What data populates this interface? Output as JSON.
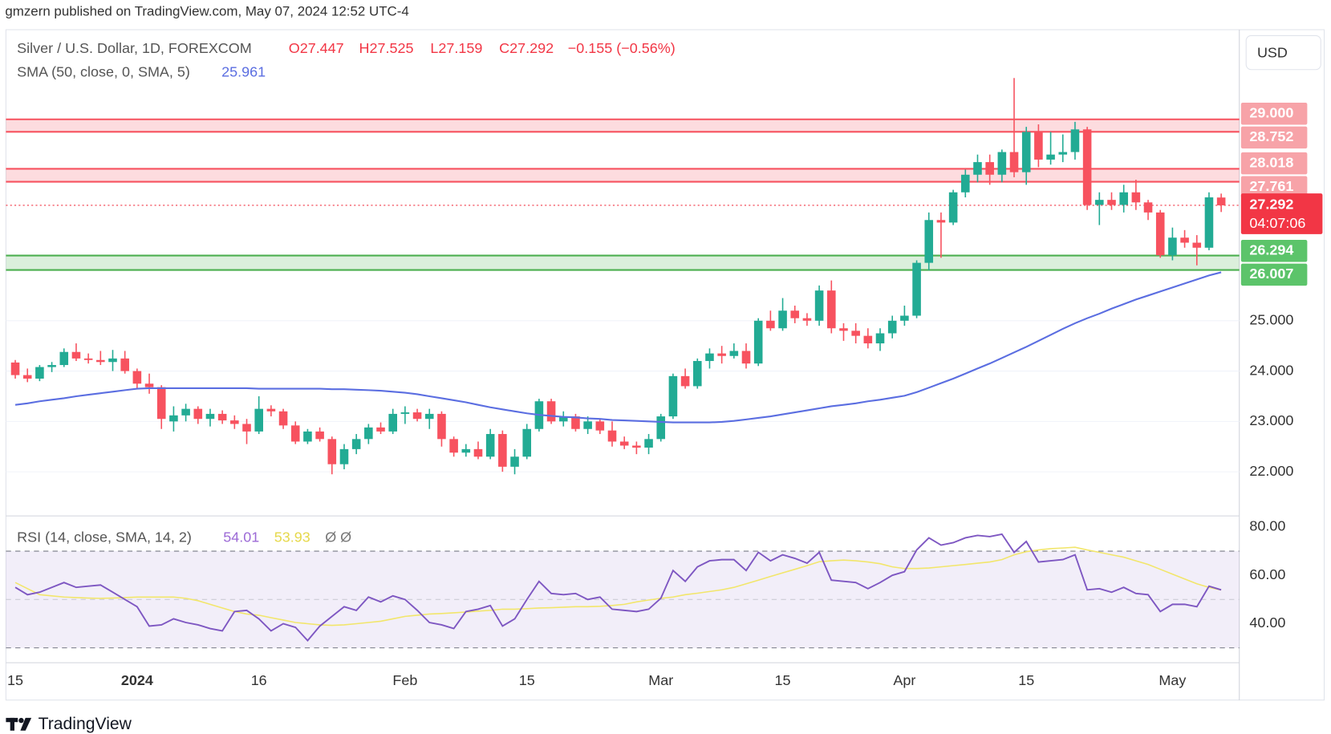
{
  "chart_data": {
    "type": "candlestick",
    "header": {
      "publisher": "gmzern published on TradingView.com, May 07, 2024 12:52 UTC-4",
      "symbol": "Silver / U.S. Dollar, 1D, FOREXCOM",
      "ohlc": [
        "O27.447",
        "H27.525",
        "L27.159",
        "C27.292"
      ],
      "change": "−0.155 (−0.56%)"
    },
    "currency": "USD",
    "countdown": "04:07:06",
    "brand": "TradingView",
    "up_color": "#22ab94",
    "down_color": "#f7525f",
    "categories": [
      "15",
      null,
      null,
      null,
      null,
      null,
      null,
      null,
      null,
      null,
      "2024",
      null,
      null,
      null,
      null,
      null,
      null,
      null,
      null,
      null,
      "16",
      null,
      null,
      null,
      null,
      null,
      null,
      null,
      null,
      null,
      null,
      null,
      "Feb",
      null,
      null,
      null,
      null,
      null,
      null,
      null,
      null,
      null,
      "15",
      null,
      null,
      null,
      null,
      null,
      null,
      null,
      null,
      null,
      null,
      "Mar",
      null,
      null,
      null,
      null,
      null,
      null,
      null,
      null,
      null,
      "15",
      null,
      null,
      null,
      null,
      null,
      null,
      null,
      null,
      null,
      "Apr",
      null,
      null,
      null,
      null,
      null,
      null,
      null,
      null,
      null,
      "15",
      null,
      null,
      null,
      null,
      null,
      null,
      null,
      null,
      null,
      null,
      null,
      "May",
      null,
      null,
      null,
      null
    ],
    "open": [
      24.17,
      23.92,
      23.85,
      24.08,
      24.12,
      24.38,
      24.25,
      24.22,
      24.18,
      24.25,
      24.0,
      23.75,
      23.68,
      23.0,
      23.12,
      23.25,
      23.05,
      23.15,
      23.02,
      22.95,
      22.8,
      23.25,
      23.2,
      22.92,
      22.6,
      22.8,
      22.65,
      22.15,
      22.45,
      22.65,
      22.88,
      22.8,
      23.15,
      23.18,
      23.05,
      23.15,
      22.65,
      22.38,
      22.45,
      22.3,
      22.75,
      22.1,
      22.3,
      22.85,
      23.4,
      23.0,
      23.1,
      22.85,
      23.0,
      22.82,
      22.6,
      22.52,
      22.48,
      22.65,
      23.1,
      23.9,
      23.7,
      24.2,
      24.35,
      24.3,
      24.4,
      24.15,
      25.0,
      24.85,
      25.2,
      25.05,
      25.0,
      25.6,
      24.85,
      24.8,
      24.7,
      24.55,
      24.75,
      25.0,
      25.1,
      26.15,
      27.0,
      26.95,
      27.55,
      27.9,
      28.15,
      27.9,
      28.35,
      27.95,
      28.75,
      28.2,
      28.3,
      28.35,
      28.8,
      27.3,
      27.4,
      27.3,
      27.55,
      27.35,
      27.15,
      26.3,
      26.65,
      26.55,
      26.45,
      27.447
    ],
    "high": [
      24.22,
      24.05,
      24.12,
      24.18,
      24.45,
      24.55,
      24.35,
      24.4,
      24.42,
      24.4,
      24.05,
      23.95,
      23.72,
      23.3,
      23.35,
      23.3,
      23.25,
      23.22,
      23.12,
      23.05,
      23.5,
      23.32,
      23.25,
      23.0,
      22.85,
      22.88,
      22.7,
      22.55,
      22.75,
      22.95,
      22.98,
      23.25,
      23.3,
      23.25,
      23.25,
      23.2,
      22.7,
      22.55,
      22.6,
      22.85,
      22.82,
      22.45,
      22.95,
      23.45,
      23.45,
      23.2,
      23.15,
      23.1,
      23.05,
      23.0,
      22.7,
      22.6,
      22.75,
      23.15,
      23.95,
      24.05,
      24.25,
      24.45,
      24.5,
      24.55,
      24.55,
      25.05,
      25.2,
      25.45,
      25.3,
      25.15,
      25.7,
      25.8,
      24.95,
      24.95,
      24.85,
      24.85,
      25.1,
      25.3,
      26.2,
      27.15,
      27.15,
      27.6,
      28.0,
      28.3,
      28.3,
      28.4,
      29.82,
      28.85,
      28.9,
      28.75,
      28.7,
      28.95,
      28.85,
      27.55,
      27.55,
      27.7,
      27.8,
      27.4,
      27.2,
      26.85,
      26.8,
      26.7,
      27.55,
      27.525
    ],
    "low": [
      23.85,
      23.78,
      23.8,
      23.98,
      24.08,
      24.2,
      24.15,
      24.12,
      24.0,
      23.95,
      23.65,
      23.55,
      22.85,
      22.8,
      23.0,
      22.95,
      22.9,
      22.95,
      22.85,
      22.55,
      22.75,
      23.1,
      22.85,
      22.55,
      22.55,
      22.6,
      21.95,
      22.05,
      22.35,
      22.55,
      22.75,
      22.75,
      22.95,
      23.0,
      22.85,
      22.5,
      22.3,
      22.3,
      22.25,
      22.25,
      22.0,
      21.95,
      22.25,
      22.8,
      22.95,
      22.9,
      22.8,
      22.75,
      22.75,
      22.5,
      22.45,
      22.35,
      22.35,
      22.6,
      23.05,
      23.65,
      23.65,
      24.05,
      24.15,
      24.25,
      24.05,
      24.1,
      24.8,
      24.8,
      24.95,
      24.9,
      24.9,
      24.75,
      24.6,
      24.55,
      24.45,
      24.4,
      24.65,
      24.9,
      25.05,
      26.0,
      26.25,
      26.9,
      27.45,
      27.75,
      27.7,
      27.75,
      27.85,
      27.7,
      28.05,
      28.1,
      28.15,
      28.2,
      27.2,
      26.9,
      27.2,
      27.15,
      27.2,
      27.0,
      26.25,
      26.2,
      26.45,
      26.1,
      26.4,
      27.159
    ],
    "close": [
      23.92,
      23.85,
      24.08,
      24.12,
      24.38,
      24.25,
      24.22,
      24.18,
      24.25,
      24.0,
      23.75,
      23.68,
      23.05,
      23.12,
      23.25,
      23.05,
      23.15,
      23.02,
      22.95,
      22.8,
      23.25,
      23.2,
      22.92,
      22.6,
      22.8,
      22.65,
      22.15,
      22.45,
      22.65,
      22.88,
      22.8,
      23.15,
      23.18,
      23.05,
      23.15,
      22.65,
      22.38,
      22.45,
      22.3,
      22.75,
      22.1,
      22.3,
      22.85,
      23.4,
      23.0,
      23.1,
      22.85,
      23.0,
      22.82,
      22.6,
      22.52,
      22.48,
      22.65,
      23.1,
      23.9,
      23.7,
      24.2,
      24.35,
      24.3,
      24.4,
      24.15,
      25.0,
      24.85,
      25.2,
      25.05,
      25.0,
      25.6,
      24.85,
      24.8,
      24.7,
      24.55,
      24.75,
      25.0,
      25.1,
      26.15,
      27.0,
      26.95,
      27.55,
      27.9,
      28.15,
      27.9,
      28.35,
      27.95,
      28.75,
      28.2,
      28.3,
      28.35,
      28.8,
      27.3,
      27.4,
      27.3,
      27.55,
      27.35,
      27.15,
      26.3,
      26.65,
      26.55,
      26.45,
      27.45,
      27.292
    ],
    "ylim": [
      21.14,
      30.78
    ],
    "yticks": [
      {
        "value": 22,
        "label": "22.000"
      },
      {
        "value": 23,
        "label": "23.000"
      },
      {
        "value": 24,
        "label": "24.000"
      },
      {
        "value": 25,
        "label": "25.000"
      }
    ],
    "grid": true,
    "zones": [
      {
        "color": "#f7525f",
        "label_color": "#f7a3a8",
        "top": {
          "value": 29,
          "label": "29.000"
        },
        "bottom": {
          "value": 28.752,
          "label": "28.752"
        }
      },
      {
        "color": "#f7525f",
        "label_color": "#f7a3a8",
        "top": {
          "value": 28.018,
          "label": "28.018"
        },
        "bottom": {
          "value": 27.761,
          "label": "27.761"
        }
      },
      {
        "color": "#4caf50",
        "label_color": "#5cc46a",
        "top": {
          "value": 26.294,
          "label": "26.294"
        },
        "bottom": {
          "value": 26.007,
          "label": "26.007"
        }
      }
    ],
    "last_price_color": "#f23645",
    "sma": {
      "name": "SMA (50, close, 0, SMA, 5)",
      "color": "#5b6ee1",
      "values": [
        23.33,
        23.36,
        23.4,
        23.43,
        23.46,
        23.5,
        23.53,
        23.56,
        23.59,
        23.62,
        23.65,
        23.66,
        23.66,
        23.66,
        23.66,
        23.66,
        23.66,
        23.66,
        23.66,
        23.66,
        23.65,
        23.65,
        23.65,
        23.65,
        23.65,
        23.65,
        23.64,
        23.64,
        23.63,
        23.62,
        23.61,
        23.59,
        23.57,
        23.54,
        23.5,
        23.46,
        23.42,
        23.38,
        23.33,
        23.28,
        23.24,
        23.2,
        23.16,
        23.13,
        23.11,
        23.09,
        23.08,
        23.06,
        23.05,
        23.03,
        23.02,
        23.01,
        23.0,
        22.99,
        22.98,
        22.98,
        22.98,
        22.98,
        22.99,
        23.01,
        23.04,
        23.07,
        23.1,
        23.14,
        23.18,
        23.22,
        23.26,
        23.3,
        23.33,
        23.36,
        23.4,
        23.43,
        23.47,
        23.51,
        23.58,
        23.67,
        23.76,
        23.85,
        23.95,
        24.05,
        24.15,
        24.26,
        24.37,
        24.48,
        24.6,
        24.72,
        24.84,
        24.95,
        25.05,
        25.14,
        25.24,
        25.33,
        25.42,
        25.5,
        25.58,
        25.66,
        25.74,
        25.82,
        25.9,
        25.961
      ]
    },
    "rsi": {
      "name": "RSI (14, close, SMA, 14, 2)",
      "color": "#7e57c2",
      "values": [
        55,
        52,
        53,
        55,
        57,
        55,
        55.5,
        56,
        53,
        50,
        47,
        39,
        39.5,
        42,
        40.5,
        39.5,
        38,
        37,
        45,
        45.5,
        42,
        37,
        40,
        38.5,
        33,
        39,
        43,
        47,
        45.5,
        51,
        49,
        51.5,
        50,
        45.5,
        40.5,
        39.5,
        38,
        45,
        46,
        47.5,
        39,
        42,
        50,
        57.5,
        52.5,
        52,
        52.5,
        50,
        51,
        46,
        45.5,
        45,
        46,
        50.5,
        62,
        57.5,
        63.5,
        66,
        66.5,
        66.5,
        62,
        69.5,
        66,
        68.5,
        67,
        65,
        69.5,
        58,
        57.5,
        57,
        54.5,
        57,
        60,
        61.5,
        70.5,
        75.5,
        72.5,
        73.5,
        75.5,
        76.5,
        76,
        77,
        69.5,
        74,
        65.5,
        66,
        66.5,
        68.5,
        54,
        54.5,
        53,
        55,
        52.5,
        52,
        45,
        48,
        48,
        47,
        55.5,
        54.01
      ],
      "sma": {
        "color": "#f2e66b",
        "values": [
          57,
          54.5,
          52,
          51.5,
          51,
          50.8,
          50.6,
          50.5,
          50.6,
          50.8,
          51,
          51,
          51,
          51,
          50.5,
          49.5,
          48,
          46.5,
          45,
          44,
          43.5,
          42.5,
          41.5,
          40.5,
          40,
          39.5,
          39.3,
          39.5,
          40,
          40.5,
          41,
          42,
          43,
          43.5,
          44,
          44.2,
          44.5,
          44.8,
          45.2,
          45.5,
          46,
          46,
          46.2,
          46.5,
          46.6,
          46.8,
          47,
          47,
          47.2,
          47.5,
          48,
          49,
          49.8,
          50.5,
          51,
          52,
          52.6,
          53.3,
          54,
          55,
          56.5,
          58,
          59.5,
          61,
          62.5,
          64,
          65.6,
          66,
          66.3,
          66,
          65.5,
          64.8,
          63.5,
          62.8,
          62.8,
          63,
          63.5,
          64,
          64.5,
          65,
          65.5,
          66.5,
          68.5,
          69.8,
          70.5,
          71,
          71.3,
          71.6,
          70.5,
          69.5,
          68.5,
          67.5,
          66,
          64.5,
          62.5,
          60.5,
          58.5,
          56.5,
          55,
          53.93
        ]
      },
      "extra": "Ø Ø",
      "band": [
        30,
        70
      ],
      "midline": 50,
      "ylim": [
        24.2,
        83.86
      ],
      "yticks": [
        {
          "value": 40,
          "label": "40.00"
        },
        {
          "value": 60,
          "label": "60.00"
        },
        {
          "value": 80,
          "label": "80.00"
        }
      ]
    }
  }
}
